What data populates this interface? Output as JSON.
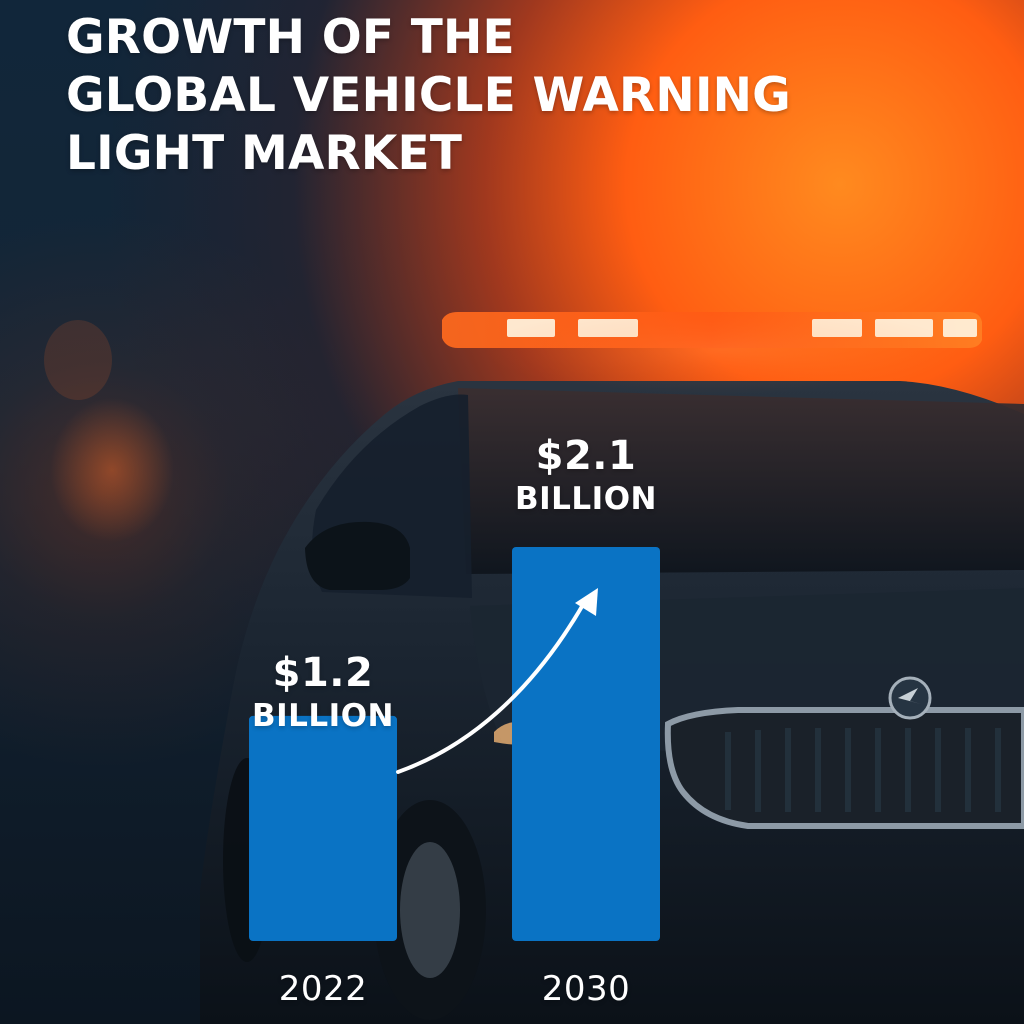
{
  "title": "GROWTH OF THE\nGLOBAL VEHICLE WARNING\nLIGHT MARKET",
  "colors": {
    "bar": "#0A73C4",
    "text": "#FFFFFF",
    "arrow": "#FFFFFF"
  },
  "chart_data": {
    "type": "bar",
    "title": "GROWTH OF THE GLOBAL VEHICLE WARNING LIGHT MARKET",
    "categories": [
      "2022",
      "2030"
    ],
    "values": [
      1.2,
      2.1
    ],
    "value_labels": [
      {
        "amount": "$1.2",
        "unit": "BILLION"
      },
      {
        "amount": "$2.1",
        "unit": "BILLION"
      }
    ],
    "xlabel": "",
    "ylabel": "",
    "grid": false,
    "legend": "none",
    "annotations": [
      "arrow-up"
    ]
  }
}
